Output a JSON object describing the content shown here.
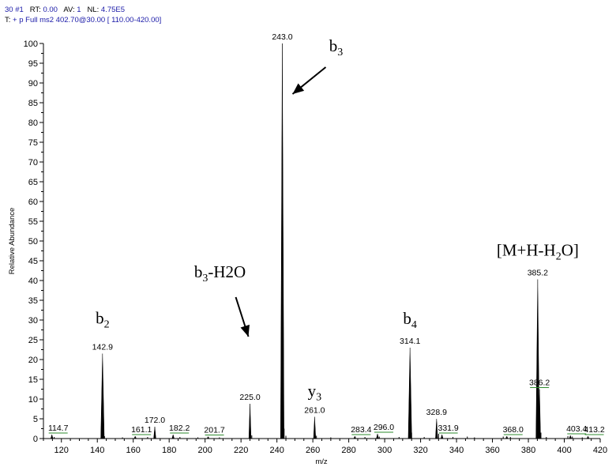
{
  "header": {
    "line1": {
      "scan_label": "30 #1",
      "rt_label": "RT:",
      "rt_value": "0.00",
      "av_label": "AV:",
      "av_value": "1",
      "nl_label": "NL:",
      "nl_value": "4.75E5"
    },
    "line2": {
      "prefix": "T:",
      "filter": "+ p Full ms2 402.70@30.00 [ 110.00-420.00]"
    }
  },
  "colors": {
    "header_value": "#1a1aa8",
    "trace": "#000000",
    "noise_marker": "#2e8b2e"
  },
  "chart_data": {
    "type": "line",
    "xlabel": "m/z",
    "ylabel": "Relative Abundance",
    "xlim": [
      110,
      420
    ],
    "ylim": [
      0,
      100
    ],
    "x_ticks": [
      120,
      140,
      160,
      180,
      200,
      220,
      240,
      260,
      280,
      300,
      320,
      340,
      360,
      380,
      400,
      420
    ],
    "y_ticks": [
      0,
      5,
      10,
      15,
      20,
      25,
      30,
      35,
      40,
      45,
      50,
      55,
      60,
      65,
      70,
      75,
      80,
      85,
      90,
      95,
      100
    ],
    "peaks": [
      {
        "mz": 114.7,
        "intensity": 1.0,
        "label": "114.7"
      },
      {
        "mz": 142.9,
        "intensity": 21.5,
        "label": "142.9"
      },
      {
        "mz": 161.1,
        "intensity": 0.6,
        "label": "161.1"
      },
      {
        "mz": 172.0,
        "intensity": 3.0,
        "label": "172.0"
      },
      {
        "mz": 182.2,
        "intensity": 1.0,
        "label": "182.2"
      },
      {
        "mz": 201.7,
        "intensity": 0.5,
        "label": "201.7"
      },
      {
        "mz": 225.0,
        "intensity": 8.8,
        "label": "225.0"
      },
      {
        "mz": 243.0,
        "intensity": 100,
        "label": "243.0"
      },
      {
        "mz": 261.0,
        "intensity": 5.5,
        "label": "261.0"
      },
      {
        "mz": 283.4,
        "intensity": 0.6,
        "label": "283.4"
      },
      {
        "mz": 296.0,
        "intensity": 1.2,
        "label": "296.0"
      },
      {
        "mz": 314.1,
        "intensity": 23.0,
        "label": "314.1"
      },
      {
        "mz": 328.9,
        "intensity": 5.0,
        "label": "328.9"
      },
      {
        "mz": 331.9,
        "intensity": 1.0,
        "label": "331.9"
      },
      {
        "mz": 368.0,
        "intensity": 0.6,
        "label": "368.0"
      },
      {
        "mz": 385.2,
        "intensity": 40.3,
        "label": "385.2"
      },
      {
        "mz": 386.2,
        "intensity": 12.5,
        "label": "386.2"
      },
      {
        "mz": 403.4,
        "intensity": 0.8,
        "label": "403.4"
      },
      {
        "mz": 413.2,
        "intensity": 0.6,
        "label": "413.2"
      }
    ],
    "minor_peaks": [
      {
        "mz": 116.0,
        "intensity": 0.4
      },
      {
        "mz": 144.0,
        "intensity": 0.6
      },
      {
        "mz": 154.0,
        "intensity": 0.3
      },
      {
        "mz": 168.0,
        "intensity": 0.4
      },
      {
        "mz": 186.0,
        "intensity": 0.4
      },
      {
        "mz": 196.0,
        "intensity": 0.3
      },
      {
        "mz": 208.0,
        "intensity": 0.3
      },
      {
        "mz": 226.0,
        "intensity": 0.8
      },
      {
        "mz": 244.0,
        "intensity": 2.5
      },
      {
        "mz": 245.0,
        "intensity": 0.7
      },
      {
        "mz": 262.0,
        "intensity": 0.7
      },
      {
        "mz": 270.0,
        "intensity": 0.3
      },
      {
        "mz": 289.0,
        "intensity": 0.4
      },
      {
        "mz": 297.0,
        "intensity": 0.5
      },
      {
        "mz": 308.0,
        "intensity": 0.4
      },
      {
        "mz": 315.0,
        "intensity": 1.5
      },
      {
        "mz": 322.0,
        "intensity": 0.4
      },
      {
        "mz": 330.0,
        "intensity": 1.2
      },
      {
        "mz": 338.0,
        "intensity": 0.4
      },
      {
        "mz": 346.0,
        "intensity": 0.5
      },
      {
        "mz": 350.0,
        "intensity": 0.3
      },
      {
        "mz": 366.0,
        "intensity": 0.5
      },
      {
        "mz": 370.0,
        "intensity": 0.4
      },
      {
        "mz": 387.0,
        "intensity": 1.5
      },
      {
        "mz": 390.0,
        "intensity": 0.4
      },
      {
        "mz": 402.0,
        "intensity": 0.6
      },
      {
        "mz": 404.5,
        "intensity": 0.5
      },
      {
        "mz": 410.0,
        "intensity": 0.3
      }
    ],
    "annotations": [
      {
        "name": "b2",
        "base": "b",
        "sub": "2",
        "suffix": "",
        "target_mz": 142.9
      },
      {
        "name": "b3-h2o",
        "base": "b",
        "sub": "3",
        "suffix": "-H2O",
        "target_mz": 225.0
      },
      {
        "name": "b3",
        "base": "b",
        "sub": "3",
        "suffix": "",
        "target_mz": 243.0
      },
      {
        "name": "y3",
        "base": "y",
        "sub": "3",
        "suffix": "",
        "target_mz": 261.0
      },
      {
        "name": "b4",
        "base": "b",
        "sub": "4",
        "suffix": "",
        "target_mz": 314.1
      },
      {
        "name": "m-h-h2o",
        "base": "[M+H-H",
        "sub": "2",
        "suffix": "O]",
        "target_mz": 385.2
      }
    ]
  }
}
